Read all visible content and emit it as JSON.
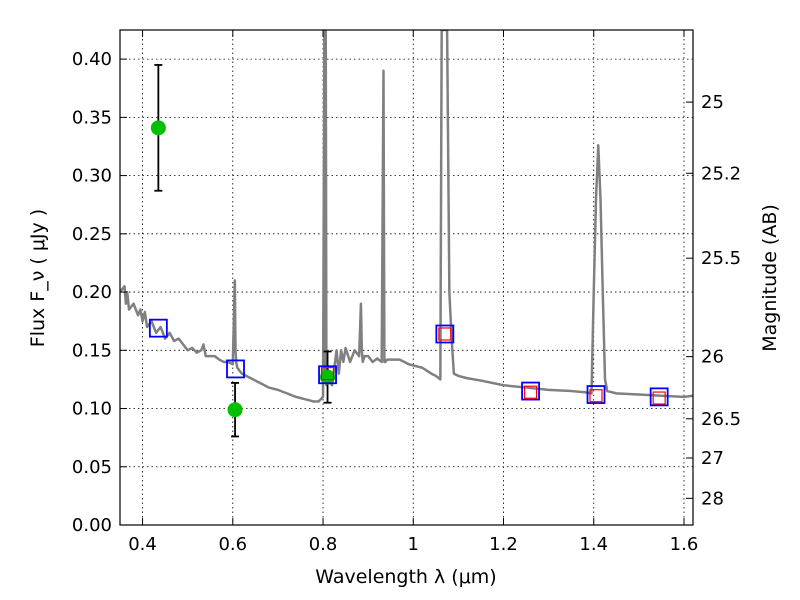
{
  "chart_data": {
    "type": "scatter",
    "xlabel": "Wavelength  λ (μm)",
    "ylabel": "Flux  F_ν  ( μJy )",
    "y2label": "Magnitude (AB)",
    "xlim": [
      0.35,
      1.62
    ],
    "ylim": [
      0.0,
      0.425
    ],
    "grid": true,
    "x_ticks": [
      {
        "value": 0.4,
        "label": "0.4"
      },
      {
        "value": 0.6,
        "label": "0.6"
      },
      {
        "value": 0.8,
        "label": "0.8"
      },
      {
        "value": 1.0,
        "label": "1"
      },
      {
        "value": 1.2,
        "label": "1.2"
      },
      {
        "value": 1.4,
        "label": "1.4"
      },
      {
        "value": 1.6,
        "label": "1.6"
      }
    ],
    "y_ticks": [
      {
        "value": 0.0,
        "label": "0.00"
      },
      {
        "value": 0.05,
        "label": "0.05"
      },
      {
        "value": 0.1,
        "label": "0.10"
      },
      {
        "value": 0.15,
        "label": "0.15"
      },
      {
        "value": 0.2,
        "label": "0.20"
      },
      {
        "value": 0.25,
        "label": "0.25"
      },
      {
        "value": 0.3,
        "label": "0.30"
      },
      {
        "value": 0.35,
        "label": "0.35"
      },
      {
        "value": 0.4,
        "label": "0.40"
      }
    ],
    "mag_ticks": [
      {
        "mag": 25,
        "label": "25"
      },
      {
        "mag": 25.2,
        "label": "25.2"
      },
      {
        "mag": 25.5,
        "label": "25.5"
      },
      {
        "mag": 26,
        "label": "26"
      },
      {
        "mag": 26.5,
        "label": "26.5"
      },
      {
        "mag": 27,
        "label": "27"
      },
      {
        "mag": 28,
        "label": "28"
      }
    ],
    "series": [
      {
        "kind": "line",
        "color": "#808080",
        "x": [
          0.35,
          0.36,
          0.363,
          0.366,
          0.37,
          0.38,
          0.39,
          0.395,
          0.4,
          0.405,
          0.41,
          0.42,
          0.43,
          0.44,
          0.45,
          0.46,
          0.47,
          0.48,
          0.49,
          0.5,
          0.51,
          0.52,
          0.53,
          0.535,
          0.54,
          0.55,
          0.56,
          0.57,
          0.58,
          0.59,
          0.6,
          0.6045,
          0.606,
          0.6075,
          0.61,
          0.62,
          0.64,
          0.66,
          0.68,
          0.7,
          0.72,
          0.74,
          0.76,
          0.78,
          0.79,
          0.8,
          0.803,
          0.8045,
          0.806,
          0.8075,
          0.809,
          0.812,
          0.82,
          0.825,
          0.83,
          0.835,
          0.84,
          0.845,
          0.85,
          0.86,
          0.87,
          0.88,
          0.884,
          0.886,
          0.888,
          0.892,
          0.9,
          0.91,
          0.92,
          0.93,
          0.934,
          0.936,
          0.938,
          0.942,
          0.95,
          0.97,
          0.99,
          1.0,
          1.02,
          1.04,
          1.05,
          1.06,
          1.063,
          1.068,
          1.075,
          1.08,
          1.085,
          1.09,
          1.1,
          1.12,
          1.15,
          1.2,
          1.25,
          1.3,
          1.35,
          1.38,
          1.395,
          1.4,
          1.405,
          1.41,
          1.415,
          1.42,
          1.425,
          1.43,
          1.45,
          1.5,
          1.55,
          1.6,
          1.62
        ],
        "y": [
          0.2,
          0.205,
          0.19,
          0.2,
          0.185,
          0.19,
          0.18,
          0.185,
          0.175,
          0.183,
          0.17,
          0.175,
          0.165,
          0.17,
          0.16,
          0.165,
          0.158,
          0.16,
          0.155,
          0.15,
          0.152,
          0.148,
          0.15,
          0.155,
          0.145,
          0.145,
          0.145,
          0.142,
          0.14,
          0.14,
          0.138,
          0.21,
          0.15,
          0.14,
          0.135,
          0.13,
          0.126,
          0.122,
          0.118,
          0.116,
          0.113,
          0.11,
          0.108,
          0.106,
          0.106,
          0.11,
          0.425,
          0.13,
          0.425,
          0.12,
          0.14,
          0.125,
          0.12,
          0.135,
          0.15,
          0.13,
          0.15,
          0.14,
          0.152,
          0.14,
          0.15,
          0.145,
          0.19,
          0.15,
          0.14,
          0.145,
          0.145,
          0.14,
          0.143,
          0.14,
          0.39,
          0.14,
          0.14,
          0.142,
          0.142,
          0.142,
          0.138,
          0.137,
          0.135,
          0.13,
          0.128,
          0.125,
          0.425,
          0.425,
          0.425,
          0.2,
          0.16,
          0.13,
          0.128,
          0.126,
          0.124,
          0.12,
          0.118,
          0.116,
          0.115,
          0.114,
          0.113,
          0.2,
          0.28,
          0.326,
          0.28,
          0.2,
          0.125,
          0.115,
          0.113,
          0.112,
          0.111,
          0.11,
          0.111
        ]
      },
      {
        "kind": "errorbar",
        "color": "#000000",
        "x": [
          0.435,
          0.605,
          0.81
        ],
        "y": [
          0.341,
          0.099,
          0.127
        ],
        "yerr": [
          0.054,
          0.023,
          0.022
        ]
      },
      {
        "kind": "scatter",
        "marker": "circle",
        "color": "#00c000",
        "x": [
          0.435,
          0.605,
          0.81
        ],
        "y": [
          0.341,
          0.099,
          0.127
        ]
      },
      {
        "kind": "scatter",
        "marker": "square",
        "color": "#0000ff",
        "x": [
          0.435,
          0.606,
          0.81,
          1.07,
          1.26,
          1.405,
          1.545
        ],
        "y": [
          0.169,
          0.134,
          0.129,
          0.164,
          0.115,
          0.112,
          0.11
        ]
      },
      {
        "kind": "scatter",
        "marker": "square",
        "color": "#ff0000",
        "x": [
          0.81,
          1.07,
          1.26,
          1.405,
          1.545
        ],
        "y": [
          0.13,
          0.164,
          0.114,
          0.111,
          0.109
        ]
      }
    ]
  }
}
